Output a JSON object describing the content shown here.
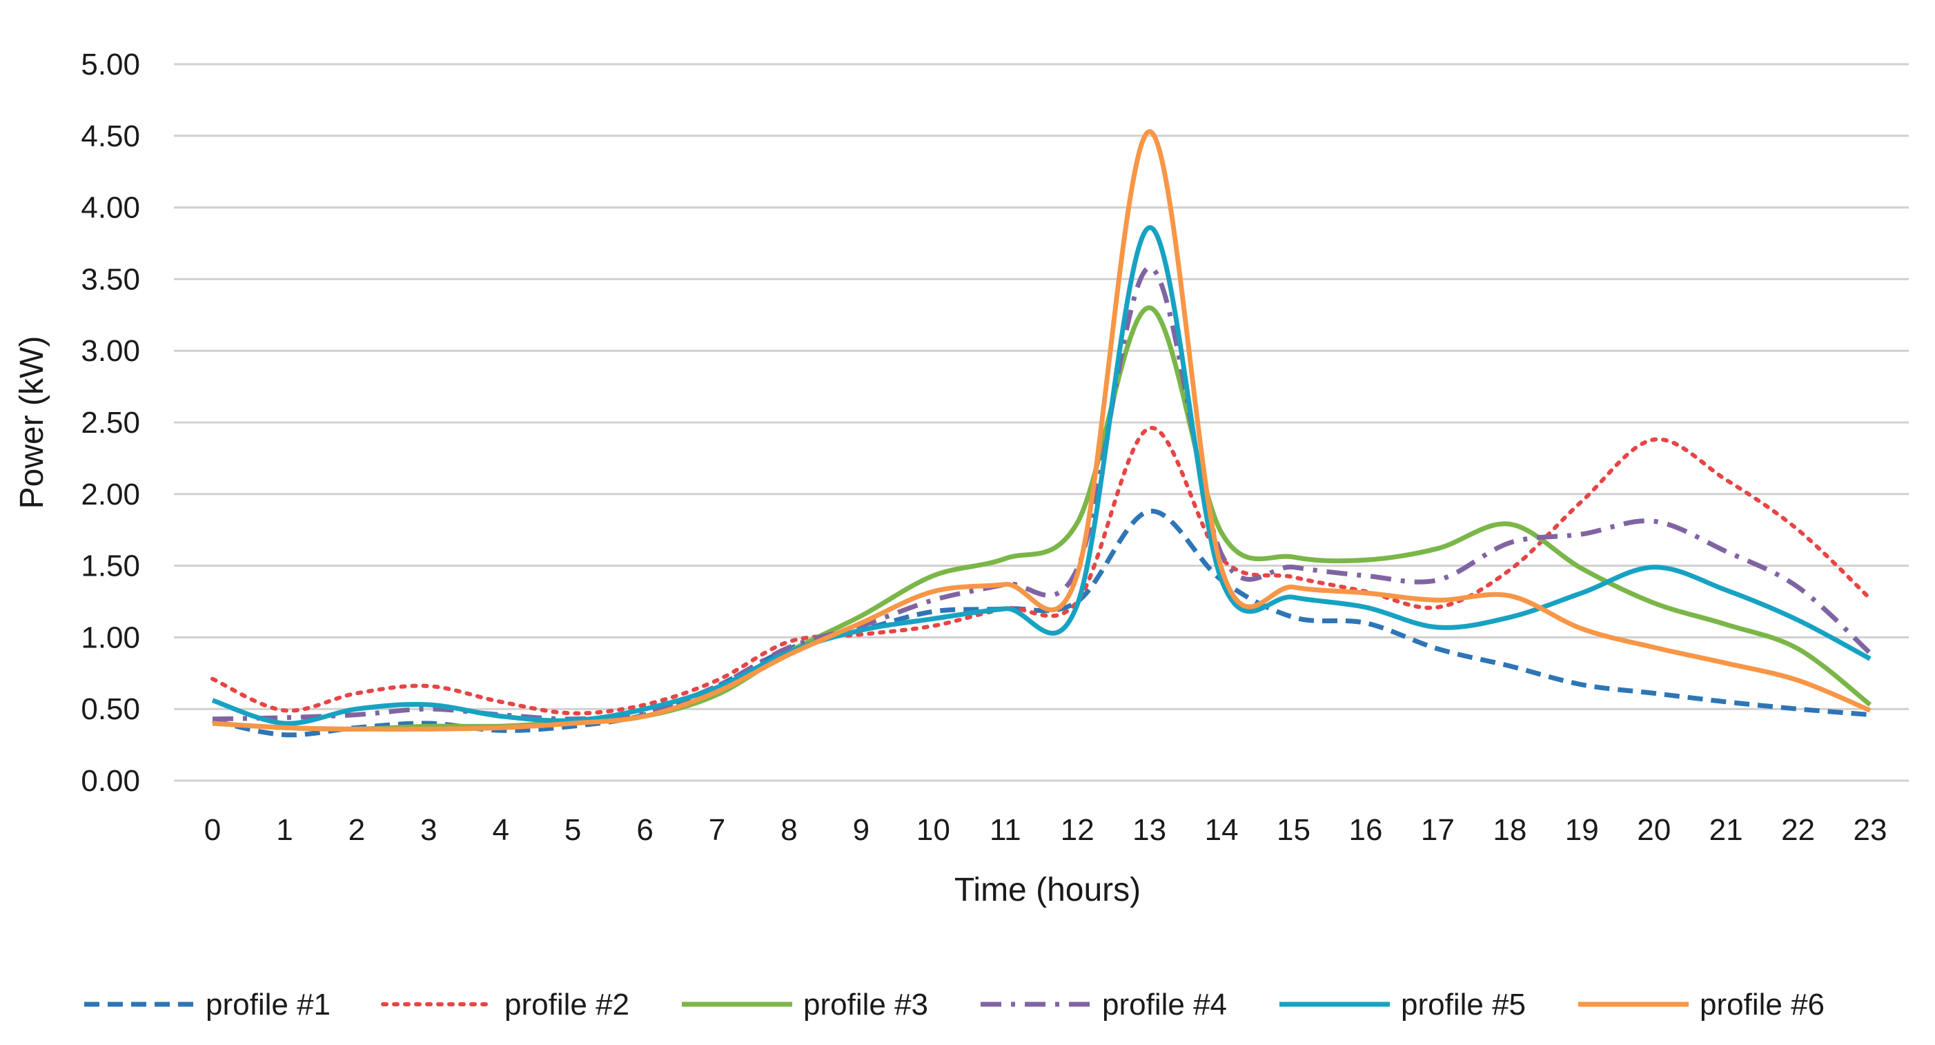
{
  "chart_data": {
    "type": "line",
    "title": "",
    "xlabel": "Time (hours)",
    "ylabel": "Power (kW)",
    "ylim": [
      0,
      5
    ],
    "ytick_labels": [
      "0.00",
      "0.50",
      "1.00",
      "1.50",
      "2.00",
      "2.50",
      "3.00",
      "3.50",
      "4.00",
      "4.50",
      "5.00"
    ],
    "x": [
      0,
      1,
      2,
      3,
      4,
      5,
      6,
      7,
      8,
      9,
      10,
      11,
      12,
      13,
      14,
      15,
      16,
      17,
      18,
      19,
      20,
      21,
      22,
      23
    ],
    "x_tick_labels": [
      "0",
      "1",
      "2",
      "3",
      "4",
      "5",
      "6",
      "7",
      "8",
      "9",
      "10",
      "11",
      "12",
      "13",
      "14",
      "15",
      "16",
      "17",
      "18",
      "19",
      "20",
      "21",
      "22",
      "23"
    ],
    "grid": true,
    "legend_position": "bottom",
    "series": [
      {
        "name": "profile #1",
        "color": "#2e75b6",
        "dash": "dashed",
        "values": [
          0.42,
          0.32,
          0.37,
          0.4,
          0.35,
          0.38,
          0.46,
          0.66,
          0.92,
          1.05,
          1.18,
          1.2,
          1.25,
          1.88,
          1.4,
          1.14,
          1.1,
          0.92,
          0.8,
          0.67,
          0.61,
          0.55,
          0.5,
          0.46
        ]
      },
      {
        "name": "profile #2",
        "color": "#e64545",
        "dash": "dotted",
        "values": [
          0.71,
          0.49,
          0.61,
          0.66,
          0.55,
          0.47,
          0.53,
          0.7,
          0.97,
          1.02,
          1.08,
          1.2,
          1.25,
          2.46,
          1.55,
          1.42,
          1.32,
          1.21,
          1.47,
          1.95,
          2.38,
          2.1,
          1.75,
          1.27
        ]
      },
      {
        "name": "profile #3",
        "color": "#7ab648",
        "dash": "solid",
        "values": [
          0.4,
          0.37,
          0.36,
          0.38,
          0.38,
          0.41,
          0.45,
          0.6,
          0.9,
          1.15,
          1.43,
          1.55,
          1.8,
          3.3,
          1.73,
          1.56,
          1.54,
          1.62,
          1.79,
          1.48,
          1.24,
          1.09,
          0.92,
          0.53
        ]
      },
      {
        "name": "profile #4",
        "color": "#8064a2",
        "dash": "dashdot",
        "values": [
          0.43,
          0.44,
          0.46,
          0.5,
          0.46,
          0.43,
          0.48,
          0.66,
          0.93,
          1.08,
          1.26,
          1.37,
          1.48,
          3.58,
          1.58,
          1.49,
          1.43,
          1.4,
          1.66,
          1.72,
          1.81,
          1.6,
          1.35,
          0.89
        ]
      },
      {
        "name": "profile #5",
        "color": "#17a2c2",
        "dash": "solid",
        "values": [
          0.56,
          0.4,
          0.5,
          0.53,
          0.45,
          0.42,
          0.5,
          0.65,
          0.9,
          1.05,
          1.13,
          1.2,
          1.23,
          3.86,
          1.4,
          1.28,
          1.21,
          1.07,
          1.14,
          1.31,
          1.49,
          1.33,
          1.12,
          0.85
        ]
      },
      {
        "name": "profile #6",
        "color": "#f79646",
        "dash": "solid",
        "values": [
          0.4,
          0.37,
          0.36,
          0.36,
          0.37,
          0.4,
          0.45,
          0.62,
          0.88,
          1.1,
          1.32,
          1.37,
          1.44,
          4.53,
          1.48,
          1.35,
          1.31,
          1.26,
          1.29,
          1.06,
          0.93,
          0.82,
          0.7,
          0.49
        ]
      }
    ]
  }
}
